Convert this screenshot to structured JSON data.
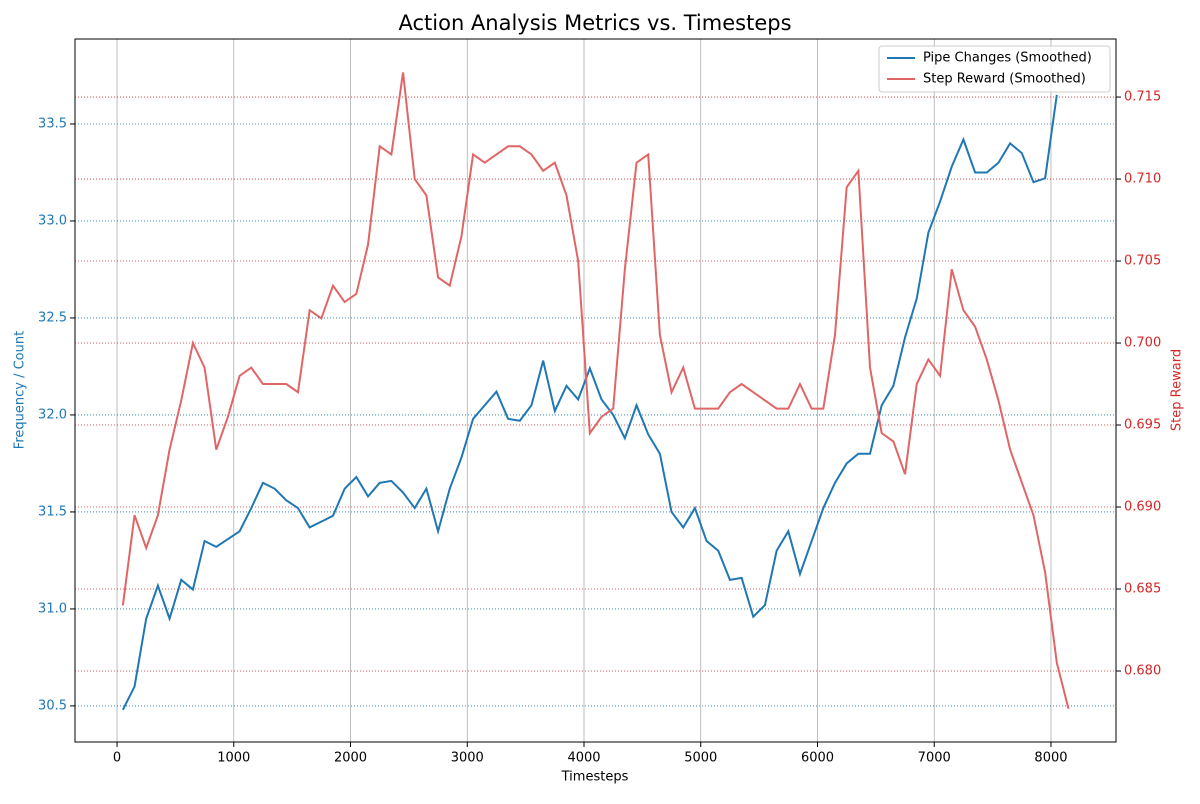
{
  "chart_data": {
    "type": "line",
    "title": "Action Analysis Metrics vs. Timesteps",
    "x_label": "Timesteps",
    "y_label": "Frequency / Count",
    "y2_label": "Step Reward",
    "x": [
      50,
      150,
      250,
      350,
      450,
      550,
      650,
      750,
      850,
      950,
      1050,
      1150,
      1250,
      1350,
      1450,
      1550,
      1650,
      1750,
      1850,
      1950,
      2050,
      2150,
      2250,
      2350,
      2450,
      2550,
      2650,
      2750,
      2850,
      2950,
      3050,
      3150,
      3250,
      3350,
      3450,
      3550,
      3650,
      3750,
      3850,
      3950,
      4050,
      4150,
      4250,
      4350,
      4450,
      4550,
      4650,
      4750,
      4850,
      4950,
      5050,
      5150,
      5250,
      5350,
      5450,
      5550,
      5650,
      5750,
      5850,
      5950,
      6050,
      6150,
      6250,
      6350,
      6450,
      6550,
      6650,
      6750,
      6850,
      6950,
      7050,
      7150,
      7250,
      7350,
      7450,
      7550,
      7650,
      7750,
      7850,
      7950,
      8050,
      8150
    ],
    "series": [
      {
        "name": "Pipe Changes (Smoothed)",
        "color": "#1f77b4",
        "axis": "y",
        "values": [
          30.48,
          30.6,
          30.95,
          31.12,
          30.95,
          31.15,
          31.1,
          31.35,
          31.32,
          31.36,
          31.4,
          31.52,
          31.65,
          31.62,
          31.56,
          31.52,
          31.42,
          31.45,
          31.48,
          31.62,
          31.68,
          31.58,
          31.65,
          31.66,
          31.6,
          31.52,
          31.62,
          31.4,
          31.62,
          31.78,
          31.98,
          32.05,
          32.12,
          31.98,
          31.97,
          32.05,
          32.28,
          32.02,
          32.15,
          32.08,
          32.24,
          32.08,
          32.0,
          31.88,
          32.05,
          31.9,
          31.8,
          31.5,
          31.42,
          31.52,
          31.35,
          31.3,
          31.15,
          31.16,
          30.96,
          31.02,
          31.3,
          31.4,
          31.18,
          31.35,
          31.52,
          31.65,
          31.75,
          31.8,
          31.8,
          32.05,
          32.15,
          32.4,
          32.6,
          32.94,
          33.1,
          33.28,
          33.42,
          33.25,
          33.25,
          33.3,
          33.4,
          33.35,
          33.2,
          33.22,
          33.65,
          null
        ]
      },
      {
        "name": "Step Reward (Smoothed)",
        "color": "#e06666",
        "axis": "y2",
        "values": [
          0.684,
          0.6895,
          0.6875,
          0.6895,
          0.6935,
          0.6965,
          0.7,
          0.6985,
          0.6935,
          0.6955,
          0.698,
          0.6985,
          0.6975,
          0.6975,
          0.6975,
          0.697,
          0.702,
          0.7015,
          0.7035,
          0.7025,
          0.703,
          0.706,
          0.712,
          0.7115,
          0.7165,
          0.71,
          0.709,
          0.704,
          0.7035,
          0.7065,
          0.7115,
          0.711,
          0.7115,
          0.712,
          0.712,
          0.7115,
          0.7105,
          0.711,
          0.709,
          0.705,
          0.6945,
          0.6955,
          0.696,
          0.7045,
          0.711,
          0.7115,
          0.7005,
          0.697,
          0.6985,
          0.696,
          0.696,
          0.696,
          0.697,
          0.6975,
          0.697,
          0.6965,
          0.696,
          0.696,
          0.6975,
          0.696,
          0.696,
          0.7005,
          0.7095,
          0.7105,
          0.6985,
          0.6945,
          0.694,
          0.692,
          0.6975,
          0.699,
          0.698,
          0.7045,
          0.702,
          0.701,
          0.699,
          0.6965,
          0.6935,
          0.6915,
          0.6895,
          0.686,
          0.6805,
          0.6777
        ]
      }
    ],
    "xlim": [
      -360,
      8557
    ],
    "xticks": [
      0,
      1000,
      2000,
      3000,
      4000,
      5000,
      6000,
      7000,
      8000
    ],
    "ylim": [
      30.314,
      33.938
    ],
    "yticks": [
      30.5,
      {
        "value": 31.0,
        "label": "31.0"
      },
      31.5,
      {
        "value": 32.0,
        "label": "32.0"
      },
      32.5,
      {
        "value": 33.0,
        "label": "33.0"
      },
      33.5
    ],
    "y2lim": [
      0.67567,
      0.71854
    ],
    "y2ticks": [
      {
        "value": 0.68,
        "label": "0.680"
      },
      0.685,
      {
        "value": 0.69,
        "label": "0.690"
      },
      0.695,
      {
        "value": 0.7,
        "label": "0.700"
      },
      0.705,
      {
        "value": 0.71,
        "label": "0.710"
      },
      0.715
    ],
    "grid": true,
    "legend": "upper right"
  }
}
